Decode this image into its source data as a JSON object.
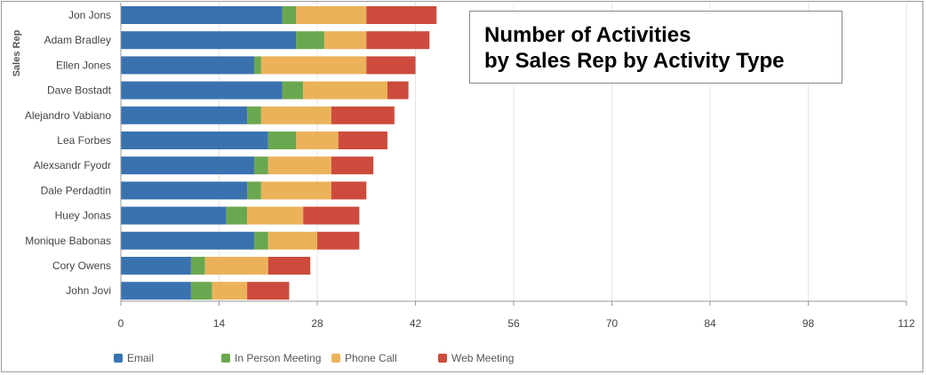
{
  "chart_data": {
    "type": "bar",
    "orientation": "horizontal",
    "stacked": true,
    "title_lines": [
      "Number of Activities",
      "by Sales Rep by Activity Type"
    ],
    "ylabel": "Sales Rep",
    "xlabel": "",
    "xlim": [
      0,
      112
    ],
    "xticks": [
      0,
      14,
      28,
      42,
      56,
      70,
      84,
      98,
      112
    ],
    "grid": true,
    "legend_position": "bottom",
    "categories": [
      "Jon Jons",
      "Adam Bradley",
      "Ellen Jones",
      "Dave Bostadt",
      "Alejandro Vabiano",
      "Lea Forbes",
      "Alexsandr Fyodr",
      "Dale Perdadtin",
      "Huey Jonas",
      "Monique Babonas",
      "Cory Owens",
      "John Jovi"
    ],
    "series": [
      {
        "name": "Email",
        "color": "#3a72b0",
        "values": [
          23,
          25,
          19,
          23,
          18,
          21,
          19,
          18,
          15,
          19,
          10,
          10
        ]
      },
      {
        "name": "In Person Meeting",
        "color": "#6aa84f",
        "values": [
          2,
          4,
          1,
          3,
          2,
          4,
          2,
          2,
          3,
          2,
          2,
          3
        ]
      },
      {
        "name": "Phone Call",
        "color": "#ebb25a",
        "values": [
          10,
          6,
          15,
          12,
          10,
          6,
          9,
          10,
          8,
          7,
          9,
          5
        ]
      },
      {
        "name": "Web Meeting",
        "color": "#cc4b3c",
        "values": [
          10,
          9,
          7,
          3,
          9,
          7,
          6,
          5,
          8,
          6,
          6,
          6
        ]
      }
    ]
  }
}
